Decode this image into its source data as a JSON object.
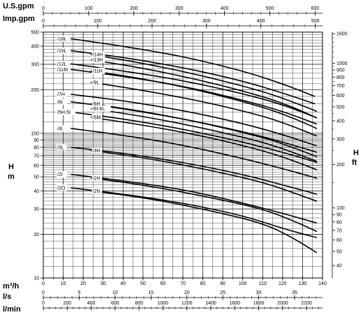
{
  "chart_data": {
    "type": "line",
    "title": "",
    "y_scale": "log",
    "grid": true,
    "axes": {
      "left_label_h": "H",
      "left_label_m": "m",
      "right_label_h": "H",
      "right_label_ft": "ft",
      "top1_label": "U.S.gpm",
      "top2_label": "Imp.gpm",
      "bottom1_label": "m³/h",
      "bottom2_label": "l/s",
      "bottom3_label": "l/min"
    },
    "ticks": {
      "left_major": [
        "500",
        "400",
        "300",
        "200",
        "100",
        "90",
        "80",
        "70",
        "60",
        "50",
        "40",
        "30",
        "20",
        "10"
      ],
      "right_ft": [
        "1600",
        "1000",
        "900",
        "800",
        "700",
        "600",
        "500",
        "400",
        "300",
        "200",
        "100",
        "90",
        "80",
        "70",
        "60",
        "50",
        "40"
      ],
      "usgpm": [
        "0",
        "100",
        "200",
        "300",
        "400",
        "500",
        "600"
      ],
      "impgpm": [
        "0",
        "100",
        "200",
        "300",
        "400",
        "500"
      ],
      "m3h": [
        "0",
        "10",
        "20",
        "30",
        "40",
        "50",
        "60",
        "70",
        "80",
        "90",
        "100",
        "110",
        "120",
        "130",
        "140"
      ],
      "ls": [
        "0",
        "5",
        "10",
        "15",
        "20",
        "25",
        "30",
        "35"
      ],
      "lmin": [
        "0",
        "200",
        "400",
        "600",
        "800",
        "1000",
        "1200",
        "1400",
        "1600",
        "1800",
        "2000",
        "2200"
      ]
    },
    "xlim_m3h": [
      0,
      140
    ],
    "ylim_m": [
      10,
      500
    ],
    "series": [
      {
        "name": "/18L",
        "x": [
          14,
          40,
          70,
          100,
          120,
          136
        ],
        "y": [
          450,
          400,
          340,
          270,
          220,
          180
        ]
      },
      {
        "name": "/15L",
        "x": [
          14,
          40,
          70,
          100,
          120,
          136
        ],
        "y": [
          372,
          335,
          285,
          230,
          190,
          160
        ]
      },
      {
        "name": "/14H",
        "x": [
          24,
          50,
          80,
          110,
          125,
          137
        ],
        "y": [
          350,
          305,
          250,
          195,
          165,
          142
        ]
      },
      {
        "name": "/13H",
        "x": [
          24,
          50,
          80,
          110,
          125,
          137
        ],
        "y": [
          322,
          282,
          231,
          180,
          152,
          128
        ]
      },
      {
        "name": "/12L",
        "x": [
          14,
          40,
          70,
          100,
          120,
          137
        ],
        "y": [
          302,
          270,
          232,
          188,
          158,
          128
        ]
      },
      {
        "name": "/11M",
        "x": [
          14,
          40,
          70,
          100,
          120,
          137
        ],
        "y": [
          276,
          248,
          212,
          170,
          142,
          116
        ]
      },
      {
        "name": "/11H",
        "x": [
          24,
          50,
          80,
          110,
          125,
          137
        ],
        "y": [
          270,
          238,
          196,
          152,
          128,
          108
        ]
      },
      {
        "name": "/9L",
        "x": [
          24,
          50,
          80,
          110,
          125,
          137
        ],
        "y": [
          225,
          198,
          166,
          132,
          112,
          96
        ]
      },
      {
        "name": "/7H",
        "x": [
          14,
          40,
          70,
          100,
          120,
          137
        ],
        "y": [
          186,
          168,
          144,
          117,
          98,
          82
        ]
      },
      {
        "name": "/6I",
        "x": [
          14,
          40,
          70,
          100,
          120,
          137
        ],
        "y": [
          165,
          148,
          126,
          103,
          87,
          74
        ]
      },
      {
        "name": "/6H",
        "x": [
          24,
          50,
          80,
          110,
          125,
          137
        ],
        "y": [
          160,
          142,
          118,
          94,
          80,
          69
        ]
      },
      {
        "name": "/6I-6L",
        "x": [
          24,
          50,
          80,
          110,
          125,
          137
        ],
        "y": [
          148,
          131,
          109,
          87,
          74,
          64
        ]
      },
      {
        "name": "/5H-5I",
        "x": [
          14,
          40,
          70,
          100,
          120,
          137
        ],
        "y": [
          140,
          126,
          107,
          87,
          74,
          63
        ]
      },
      {
        "name": "/5M",
        "x": [
          24,
          50,
          80,
          110,
          125,
          137
        ],
        "y": [
          129,
          114,
          96,
          76,
          65,
          56
        ]
      },
      {
        "name": "/4I",
        "x": [
          14,
          40,
          70,
          100,
          120,
          137
        ],
        "y": [
          108,
          97,
          83,
          67,
          57,
          49
        ]
      },
      {
        "name": "/3L",
        "x": [
          14,
          40,
          70,
          100,
          120,
          137
        ],
        "y": [
          80,
          73,
          63,
          52,
          44,
          38
        ]
      },
      {
        "name": "/3H",
        "x": [
          24,
          50,
          80,
          110,
          125,
          137
        ],
        "y": [
          76,
          68,
          57,
          46,
          39,
          34
        ]
      },
      {
        "name": "/2I",
        "x": [
          14,
          40,
          70,
          100,
          120,
          137
        ],
        "y": [
          52,
          47,
          41,
          33,
          28,
          24
        ]
      },
      {
        "name": "/2H",
        "x": [
          24,
          50,
          80,
          110,
          125,
          137
        ],
        "y": [
          49,
          44,
          37,
          30,
          25,
          21
        ]
      },
      {
        "name": "/2O",
        "x": [
          14,
          40,
          70,
          100,
          120,
          137
        ],
        "y": [
          42,
          38,
          33,
          27,
          22,
          19
        ]
      },
      {
        "name": "/2N",
        "x": [
          24,
          50,
          80,
          110,
          125,
          137
        ],
        "y": [
          40,
          36,
          30,
          24,
          19,
          15
        ]
      }
    ],
    "label_positions": {
      "/18L": "left",
      "/15L": "left",
      "/12L": "left",
      "/11M": "left",
      "/7H": "left",
      "/6I": "left",
      "/5H-5I": "left",
      "/4I": "left",
      "/3L": "left",
      "/2I": "left",
      "/2O": "left",
      "/14H": "mid",
      "/13H": "mid",
      "/11H": "mid",
      "/9L": "mid",
      "/6H": "mid",
      "/6I-6L": "mid",
      "/5M": "mid",
      "/3H": "mid",
      "/2H": "mid",
      "/2N": "mid"
    }
  }
}
